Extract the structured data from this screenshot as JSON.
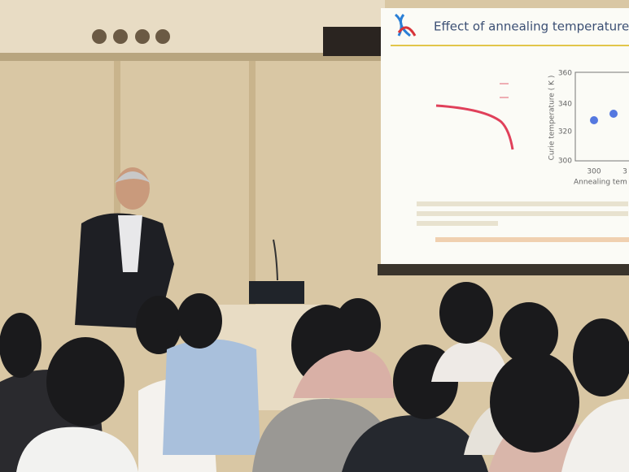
{
  "slide": {
    "title": "Effect of annealing temperature",
    "y_axis_label": "Curie temperature ( K )",
    "y_ticks": [
      "360",
      "340",
      "320",
      "300"
    ],
    "x_ticks": [
      "300",
      "3"
    ],
    "x_axis_label": "Annealing tem"
  }
}
